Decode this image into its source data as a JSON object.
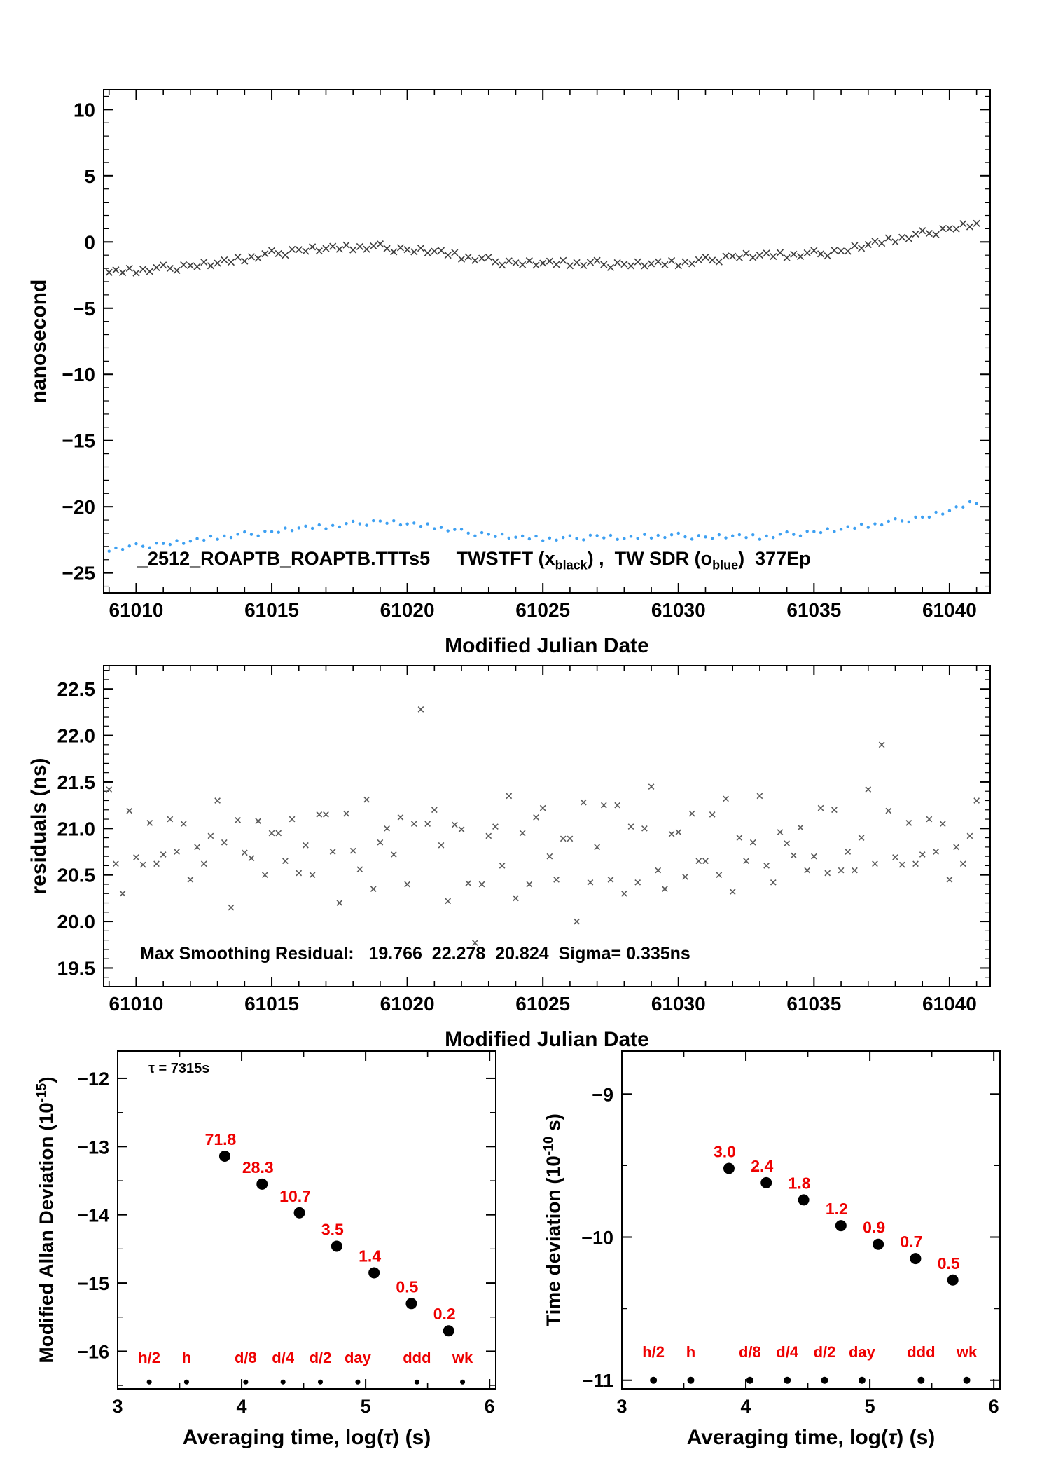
{
  "colors": {
    "background": "#ffffff",
    "axis": "#000000",
    "twstft_marker": "#3d3d3d",
    "sdr_marker": "#3da0f2",
    "residual_marker": "#5a5a5a",
    "dev_dot": "#000000",
    "red_label": "#ee0000"
  },
  "chart_data": [
    {
      "id": "twstft",
      "type": "scatter",
      "xlabel": "Modified Julian Date",
      "ylabel": "nanosecond",
      "xlim": [
        61008.8,
        61041.5
      ],
      "ylim": [
        -26.5,
        11.5
      ],
      "xticks": [
        61010,
        61015,
        61020,
        61025,
        61030,
        61035,
        61040
      ],
      "yticks": [
        10,
        5,
        0,
        -5,
        -10,
        -15,
        -20,
        -25
      ],
      "x_start": 61009,
      "x_step": 0.25,
      "annotation": {
        "file": "_2512_ROAPTB_ROAPTB.TTTs5",
        "seg1": "     TWSTFT (x",
        "sub1": "black",
        "seg2": ") ,  TW SDR (o",
        "sub2": "blue",
        "seg3": ")  377Ep"
      },
      "series": [
        {
          "name": "TWSTFT",
          "marker": "x",
          "color": "#3d3d3d",
          "y": [
            -2.3,
            -2.11,
            -2.32,
            -1.99,
            -2.35,
            -2.06,
            -2.23,
            -1.94,
            -1.75,
            -2.0,
            -2.15,
            -1.73,
            -1.78,
            -1.87,
            -1.52,
            -1.8,
            -1.6,
            -1.36,
            -1.53,
            -1.14,
            -1.45,
            -1.11,
            -1.23,
            -0.89,
            -0.65,
            -0.88,
            -1.0,
            -0.56,
            -0.58,
            -0.7,
            -0.37,
            -0.68,
            -0.5,
            -0.33,
            -0.55,
            -0.23,
            -0.6,
            -0.35,
            -0.55,
            -0.3,
            -0.15,
            -0.5,
            -0.75,
            -0.43,
            -0.58,
            -0.75,
            -0.47,
            -0.83,
            -0.7,
            -0.65,
            -1.0,
            -0.8,
            -1.3,
            -1.13,
            -1.4,
            -1.23,
            -1.15,
            -1.5,
            -1.75,
            -1.43,
            -1.58,
            -1.72,
            -1.42,
            -1.75,
            -1.6,
            -1.45,
            -1.7,
            -1.4,
            -1.8,
            -1.56,
            -1.78,
            -1.54,
            -1.4,
            -1.71,
            -1.93,
            -1.57,
            -1.68,
            -1.81,
            -1.5,
            -1.81,
            -1.65,
            -1.49,
            -1.73,
            -1.41,
            -1.8,
            -1.5,
            -1.65,
            -1.35,
            -1.15,
            -1.38,
            -1.5,
            -1.06,
            -1.08,
            -1.2,
            -0.87,
            -1.18,
            -1.0,
            -0.85,
            -1.1,
            -0.8,
            -1.2,
            -0.93,
            -1.1,
            -0.83,
            -0.65,
            -0.9,
            -1.05,
            -0.63,
            -0.68,
            -0.7,
            -0.27,
            -0.48,
            -0.2,
            0.05,
            -0.1,
            0.3,
            0.0,
            0.35,
            0.25,
            0.6,
            0.85,
            0.65,
            0.55,
            1.02,
            1.02,
            0.98,
            1.38,
            1.15,
            1.4
          ]
        },
        {
          "name": "TW-SDR",
          "marker": "dot",
          "color": "#3da0f2",
          "y": [
            -23.36,
            -23.11,
            -23.22,
            -22.97,
            -22.8,
            -22.99,
            -23.1,
            -22.75,
            -22.78,
            -22.85,
            -22.56,
            -22.77,
            -22.6,
            -22.41,
            -22.53,
            -22.22,
            -22.46,
            -22.21,
            -22.32,
            -22.07,
            -21.9,
            -22.09,
            -22.2,
            -21.85,
            -21.88,
            -21.93,
            -21.61,
            -21.8,
            -21.6,
            -21.46,
            -21.63,
            -21.37,
            -21.66,
            -21.41,
            -21.52,
            -21.27,
            -21.1,
            -21.29,
            -21.4,
            -21.05,
            -21.08,
            -21.25,
            -21.06,
            -21.37,
            -21.3,
            -21.23,
            -21.48,
            -21.29,
            -21.66,
            -21.56,
            -21.82,
            -21.72,
            -21.7,
            -21.99,
            -22.2,
            -21.95,
            -22.08,
            -22.25,
            -22.06,
            -22.37,
            -22.3,
            -22.21,
            -22.43,
            -22.22,
            -22.56,
            -22.36,
            -22.52,
            -22.32,
            -22.2,
            -22.39,
            -22.5,
            -22.15,
            -22.18,
            -22.35,
            -22.16,
            -22.47,
            -22.4,
            -22.23,
            -22.38,
            -22.09,
            -22.36,
            -22.16,
            -22.32,
            -22.12,
            -22.0,
            -22.27,
            -22.45,
            -22.18,
            -22.28,
            -22.38,
            -22.11,
            -22.35,
            -22.2,
            -22.11,
            -22.33,
            -22.12,
            -22.46,
            -22.21,
            -22.32,
            -22.07,
            -21.9,
            -22.09,
            -22.2,
            -21.85,
            -21.88,
            -21.95,
            -21.66,
            -21.87,
            -21.7,
            -21.51,
            -21.63,
            -21.32,
            -21.56,
            -21.29,
            -21.37,
            -21.1,
            -20.9,
            -21.07,
            -21.15,
            -20.78,
            -20.78,
            -20.78,
            -20.41,
            -20.55,
            -20.3,
            -20.01,
            -20.03,
            -19.62,
            -19.76
          ]
        }
      ]
    },
    {
      "id": "residuals",
      "type": "scatter",
      "xlabel": "Modified Julian Date",
      "ylabel": "residuals (ns)",
      "xlim": [
        61008.8,
        61041.5
      ],
      "ylim": [
        19.3,
        22.75
      ],
      "xticks": [
        61010,
        61015,
        61020,
        61025,
        61030,
        61035,
        61040
      ],
      "yticks": [
        22.5,
        22.0,
        21.5,
        21.0,
        20.5,
        20.0,
        19.5
      ],
      "x_start": 61009,
      "x_step": 0.25,
      "annotation": "Max Smoothing Residual: _19.766_22.278_20.824  Sigma= 0.335ns",
      "stats": {
        "min": 19.766,
        "max": 22.278,
        "mean": 20.824,
        "sigma_ns": 0.335
      },
      "series": [
        {
          "name": "residuals",
          "marker": "x",
          "color": "#5a5a5a",
          "y": [
            21.42,
            20.62,
            20.3,
            21.19,
            20.69,
            20.61,
            21.06,
            20.62,
            20.72,
            21.1,
            20.75,
            21.05,
            20.45,
            20.8,
            20.62,
            20.92,
            21.3,
            20.85,
            20.15,
            21.09,
            20.74,
            20.68,
            21.08,
            20.5,
            20.95,
            20.95,
            20.65,
            21.1,
            20.52,
            20.82,
            20.5,
            21.15,
            21.15,
            20.75,
            20.2,
            21.16,
            20.76,
            20.56,
            21.31,
            20.35,
            20.85,
            21.0,
            20.72,
            21.12,
            20.4,
            21.05,
            22.28,
            21.05,
            21.2,
            20.82,
            20.22,
            21.04,
            20.99,
            20.41,
            19.77,
            20.4,
            20.92,
            21.02,
            20.6,
            21.35,
            20.25,
            20.95,
            20.4,
            21.12,
            21.22,
            20.7,
            20.45,
            20.89,
            20.89,
            20.0,
            21.28,
            20.42,
            20.8,
            21.25,
            20.45,
            21.25,
            20.3,
            21.02,
            20.42,
            21.0,
            21.45,
            20.55,
            20.35,
            20.94,
            20.96,
            20.48,
            21.16,
            20.65,
            20.65,
            21.15,
            20.5,
            21.32,
            20.32,
            20.9,
            20.65,
            20.85,
            21.35,
            20.6,
            20.42,
            20.96,
            20.84,
            20.71,
            21.01,
            20.55,
            20.7,
            21.22,
            20.52,
            21.2,
            20.55,
            20.75,
            20.55,
            20.9,
            21.42,
            20.62,
            21.9,
            21.19,
            20.69,
            20.61,
            21.06,
            20.62,
            20.72,
            21.1,
            20.75,
            21.05,
            20.45,
            20.8,
            20.62,
            20.92,
            21.3
          ]
        }
      ]
    },
    {
      "id": "mdev",
      "type": "scatter",
      "xlabel_parts": [
        "Averaging time, log(",
        "τ",
        ") (s)"
      ],
      "ylabel_parts": [
        "Modified Allan Deviation (10",
        "-15",
        ")"
      ],
      "tau_annotation": "τ = 7315s",
      "xlim": [
        3.0,
        6.05
      ],
      "ylim": [
        -16.55,
        -11.6
      ],
      "xticks": [
        3,
        4,
        5,
        6
      ],
      "yticks": [
        -12,
        -13,
        -14,
        -15,
        -16
      ],
      "points": {
        "x": [
          3.864,
          4.165,
          4.466,
          4.767,
          5.068,
          5.369,
          5.67
        ],
        "y": [
          -13.14,
          -13.55,
          -13.97,
          -14.46,
          -14.85,
          -15.3,
          -15.7
        ],
        "value_labels": [
          "71.8",
          "28.3",
          "10.7",
          "3.5",
          "1.4",
          "0.5",
          "0.2"
        ]
      },
      "time_markers": {
        "labels": [
          "h/2",
          "h",
          "d/8",
          "d/4",
          "d/2",
          "day",
          "ddd",
          "wk"
        ],
        "x": [
          3.255,
          3.556,
          4.033,
          4.334,
          4.635,
          4.937,
          5.414,
          5.782
        ],
        "marker_y": -16.45,
        "label_y": -16.17
      }
    },
    {
      "id": "tdev",
      "type": "scatter",
      "xlabel_parts": [
        "Averaging time, log(",
        "τ",
        ") (s)"
      ],
      "ylabel_parts": [
        "Time deviation (10",
        "-10",
        " s)"
      ],
      "xlim": [
        3.0,
        6.05
      ],
      "ylim": [
        -11.06,
        -8.7
      ],
      "xticks": [
        3,
        4,
        5,
        6
      ],
      "yticks": [
        -9,
        -10,
        -11
      ],
      "points": {
        "x": [
          3.864,
          4.165,
          4.466,
          4.767,
          5.068,
          5.369,
          5.67
        ],
        "y": [
          -9.52,
          -9.62,
          -9.74,
          -9.92,
          -10.05,
          -10.15,
          -10.3
        ],
        "value_labels": [
          "3.0",
          "2.4",
          "1.8",
          "1.2",
          "0.9",
          "0.7",
          "0.5"
        ]
      },
      "time_markers": {
        "labels": [
          "h/2",
          "h",
          "d/8",
          "d/4",
          "d/2",
          "day",
          "ddd",
          "wk"
        ],
        "x": [
          3.255,
          3.556,
          4.033,
          4.334,
          4.635,
          4.937,
          5.414,
          5.782
        ],
        "marker_y": -11.0,
        "label_y": -10.84
      }
    }
  ]
}
